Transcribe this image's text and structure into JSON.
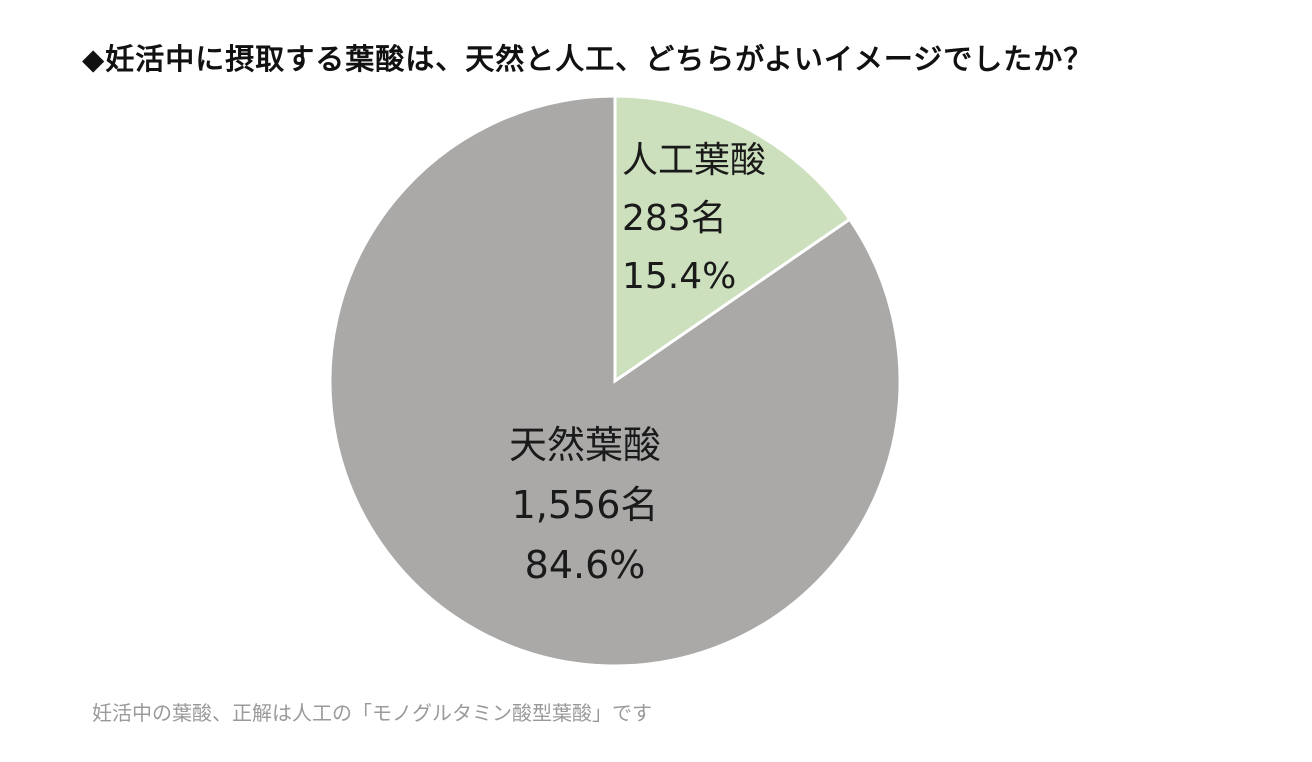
{
  "chart_data": {
    "type": "pie",
    "title": "◆妊活中に摂取する葉酸は、天然と人工、どちらがよいイメージでしたか？",
    "start_angle_deg": 0,
    "direction": "clockwise",
    "slices": [
      {
        "label": "人工葉酸",
        "count_text": "283名",
        "percent_text": "15.4%",
        "value": 15.4,
        "color": "#cde0bd"
      },
      {
        "label": "天然葉酸",
        "count_text": "1,556名",
        "percent_text": "84.6%",
        "value": 84.6,
        "color": "#aba9a8"
      }
    ]
  },
  "caption": "妊活中の葉酸、正解は人工の「モノグルタミン酸型葉酸」です"
}
